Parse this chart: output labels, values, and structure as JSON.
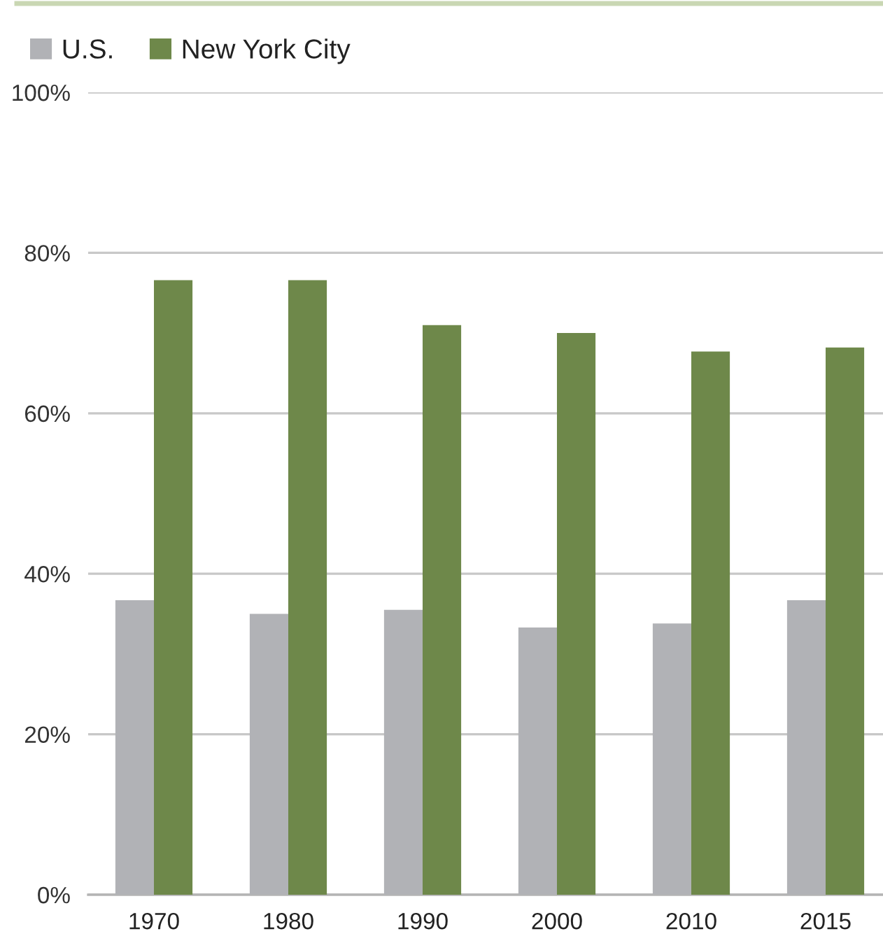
{
  "chart_data": {
    "type": "bar",
    "categories": [
      "1970",
      "1980",
      "1990",
      "2000",
      "2010",
      "2015"
    ],
    "series": [
      {
        "name": "U.S.",
        "color": "#b1b2b6",
        "values": [
          36.7,
          35.0,
          35.5,
          33.3,
          33.8,
          36.7
        ]
      },
      {
        "name": "New York City",
        "color": "#6e884a",
        "values": [
          76.6,
          76.6,
          71.0,
          70.0,
          67.7,
          68.2
        ]
      }
    ],
    "ylim": [
      0,
      100
    ],
    "yticks": [
      {
        "value": 0,
        "label": "0%"
      },
      {
        "value": 20,
        "label": "20%"
      },
      {
        "value": 40,
        "label": "40%"
      },
      {
        "value": 60,
        "label": "60%"
      },
      {
        "value": 80,
        "label": "80%"
      },
      {
        "value": 100,
        "label": "100%"
      }
    ],
    "grid": "y",
    "legend": "top left"
  }
}
